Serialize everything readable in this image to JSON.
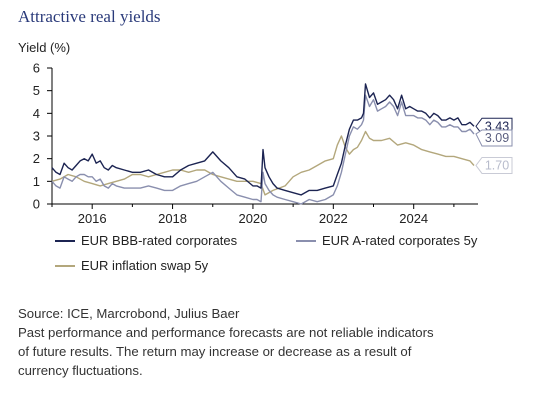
{
  "title": "Attractive real yields",
  "footer": {
    "source": "Source: ICE, Marcrobond, Julius Baer",
    "disclaimer": [
      "Past performance and performance forecasts are not reliable indicators",
      "of future results. The return may increase or decrease as a result of",
      "currency fluctuations."
    ]
  },
  "colors": {
    "bbb": "#1c2452",
    "a": "#8a8fae",
    "infl": "#b3a77c",
    "grid": "#000000"
  },
  "chart_data": {
    "type": "line",
    "ylabel": "Yield (%)",
    "ylim": [
      0,
      6
    ],
    "yticks": [
      0,
      1,
      2,
      3,
      4,
      5,
      6
    ],
    "xlim": [
      2015.0,
      2025.6
    ],
    "xticks": [
      2016,
      2018,
      2020,
      2022,
      2024
    ],
    "xtick_labels": [
      "2016",
      "2018",
      "2020",
      "2022",
      "2024"
    ],
    "series": [
      {
        "name": "EUR BBB-rated corporates",
        "end_label": "3.43",
        "x": [
          2015.0,
          2015.1,
          2015.2,
          2015.3,
          2015.4,
          2015.5,
          2015.6,
          2015.7,
          2015.8,
          2015.9,
          2016.0,
          2016.1,
          2016.2,
          2016.3,
          2016.4,
          2016.5,
          2016.6,
          2016.8,
          2017.0,
          2017.2,
          2017.4,
          2017.6,
          2017.8,
          2018.0,
          2018.2,
          2018.4,
          2018.6,
          2018.8,
          2019.0,
          2019.2,
          2019.4,
          2019.6,
          2019.8,
          2020.0,
          2020.1,
          2020.2,
          2020.25,
          2020.3,
          2020.4,
          2020.5,
          2020.6,
          2020.8,
          2021.0,
          2021.2,
          2021.4,
          2021.6,
          2021.8,
          2022.0,
          2022.1,
          2022.2,
          2022.3,
          2022.4,
          2022.5,
          2022.6,
          2022.7,
          2022.75,
          2022.8,
          2022.9,
          2023.0,
          2023.1,
          2023.2,
          2023.3,
          2023.4,
          2023.5,
          2023.6,
          2023.7,
          2023.8,
          2023.9,
          2024.0,
          2024.1,
          2024.2,
          2024.3,
          2024.4,
          2024.5,
          2024.6,
          2024.7,
          2024.8,
          2024.9,
          2025.0,
          2025.1,
          2025.2,
          2025.3,
          2025.4,
          2025.5
        ],
        "values": [
          1.6,
          1.4,
          1.3,
          1.8,
          1.6,
          1.5,
          1.7,
          1.9,
          2.0,
          1.9,
          2.2,
          1.8,
          1.9,
          1.6,
          1.5,
          1.7,
          1.6,
          1.5,
          1.4,
          1.4,
          1.5,
          1.3,
          1.2,
          1.2,
          1.5,
          1.7,
          1.8,
          1.9,
          2.3,
          1.9,
          1.6,
          1.2,
          1.1,
          0.8,
          0.8,
          0.7,
          2.4,
          1.6,
          1.2,
          0.9,
          0.7,
          0.6,
          0.5,
          0.4,
          0.6,
          0.6,
          0.7,
          0.8,
          1.3,
          1.8,
          2.6,
          3.3,
          3.7,
          3.7,
          3.8,
          4.0,
          5.3,
          4.7,
          4.9,
          4.4,
          4.5,
          4.6,
          4.8,
          4.6,
          4.2,
          4.8,
          4.2,
          4.3,
          4.2,
          4.1,
          4.1,
          4.0,
          3.8,
          4.0,
          3.9,
          3.7,
          3.7,
          3.8,
          3.7,
          3.8,
          3.5,
          3.5,
          3.6,
          3.43
        ]
      },
      {
        "name": "EUR A-rated corporates 5y",
        "end_label": "3.09",
        "x": [
          2015.0,
          2015.1,
          2015.2,
          2015.3,
          2015.4,
          2015.5,
          2015.6,
          2015.7,
          2015.8,
          2015.9,
          2016.0,
          2016.1,
          2016.2,
          2016.3,
          2016.4,
          2016.5,
          2016.6,
          2016.8,
          2017.0,
          2017.2,
          2017.4,
          2017.6,
          2017.8,
          2018.0,
          2018.2,
          2018.4,
          2018.6,
          2018.8,
          2019.0,
          2019.2,
          2019.4,
          2019.6,
          2019.8,
          2020.0,
          2020.1,
          2020.2,
          2020.25,
          2020.3,
          2020.4,
          2020.5,
          2020.6,
          2020.8,
          2021.0,
          2021.2,
          2021.4,
          2021.6,
          2021.8,
          2022.0,
          2022.1,
          2022.2,
          2022.3,
          2022.4,
          2022.5,
          2022.6,
          2022.7,
          2022.75,
          2022.8,
          2022.9,
          2023.0,
          2023.1,
          2023.2,
          2023.3,
          2023.4,
          2023.5,
          2023.6,
          2023.7,
          2023.8,
          2023.9,
          2024.0,
          2024.1,
          2024.2,
          2024.3,
          2024.4,
          2024.5,
          2024.6,
          2024.7,
          2024.8,
          2024.9,
          2025.0,
          2025.1,
          2025.2,
          2025.3,
          2025.4,
          2025.5
        ],
        "values": [
          1.0,
          0.8,
          0.7,
          1.2,
          1.1,
          1.0,
          1.2,
          1.3,
          1.3,
          1.2,
          1.2,
          1.0,
          1.1,
          0.8,
          0.7,
          0.9,
          0.8,
          0.7,
          0.7,
          0.7,
          0.8,
          0.7,
          0.6,
          0.6,
          0.8,
          0.9,
          1.0,
          1.2,
          1.4,
          1.0,
          0.7,
          0.4,
          0.3,
          0.2,
          0.2,
          0.1,
          1.4,
          0.9,
          0.6,
          0.4,
          0.3,
          0.2,
          0.1,
          0.0,
          0.2,
          0.1,
          0.2,
          0.4,
          0.8,
          1.4,
          2.2,
          3.0,
          3.4,
          3.3,
          3.5,
          3.7,
          4.8,
          4.3,
          4.6,
          4.1,
          4.2,
          4.3,
          4.5,
          4.3,
          3.9,
          4.5,
          3.9,
          3.9,
          3.9,
          3.8,
          3.8,
          3.7,
          3.5,
          3.7,
          3.6,
          3.4,
          3.4,
          3.5,
          3.4,
          3.4,
          3.2,
          3.2,
          3.3,
          3.09
        ]
      },
      {
        "name": "EUR inflation swap 5y",
        "end_label": "1.70",
        "x": [
          2015.0,
          2015.2,
          2015.4,
          2015.6,
          2015.8,
          2016.0,
          2016.2,
          2016.4,
          2016.6,
          2016.8,
          2017.0,
          2017.2,
          2017.4,
          2017.6,
          2017.8,
          2018.0,
          2018.2,
          2018.4,
          2018.6,
          2018.8,
          2019.0,
          2019.2,
          2019.4,
          2019.6,
          2019.8,
          2020.0,
          2020.2,
          2020.3,
          2020.5,
          2020.8,
          2021.0,
          2021.2,
          2021.4,
          2021.6,
          2021.8,
          2022.0,
          2022.1,
          2022.2,
          2022.3,
          2022.4,
          2022.5,
          2022.6,
          2022.7,
          2022.8,
          2022.9,
          2023.0,
          2023.2,
          2023.4,
          2023.6,
          2023.8,
          2024.0,
          2024.2,
          2024.4,
          2024.6,
          2024.8,
          2025.0,
          2025.2,
          2025.4,
          2025.5
        ],
        "values": [
          1.0,
          1.1,
          1.3,
          1.2,
          1.0,
          0.9,
          0.8,
          0.9,
          1.0,
          1.1,
          1.3,
          1.3,
          1.2,
          1.3,
          1.4,
          1.5,
          1.5,
          1.4,
          1.5,
          1.5,
          1.3,
          1.2,
          1.1,
          1.0,
          1.0,
          1.0,
          0.9,
          0.4,
          0.6,
          0.8,
          1.2,
          1.4,
          1.5,
          1.7,
          1.9,
          2.0,
          2.6,
          3.0,
          2.5,
          2.2,
          2.4,
          2.5,
          2.8,
          3.2,
          2.9,
          2.8,
          2.8,
          2.9,
          2.6,
          2.7,
          2.6,
          2.4,
          2.3,
          2.2,
          2.1,
          2.1,
          2.0,
          1.9,
          1.7
        ]
      }
    ]
  }
}
